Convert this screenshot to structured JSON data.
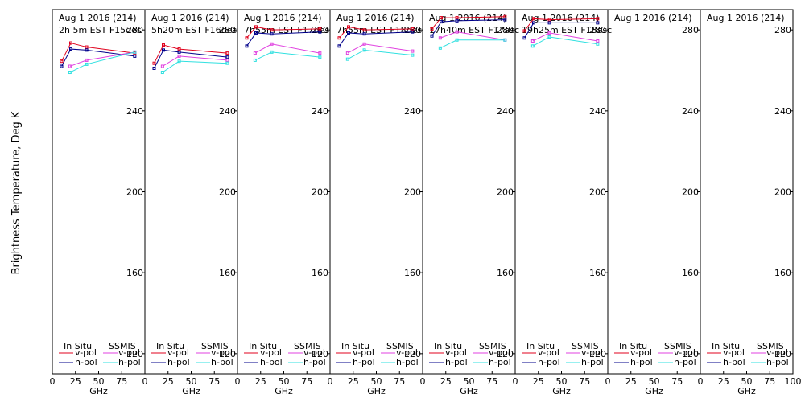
{
  "ylabel": "Brightness Temperature, Deg K",
  "xlabel": "GHz",
  "x_ticks": [
    0,
    25,
    50,
    75,
    100
  ],
  "y_ticks": [
    120,
    160,
    200,
    240,
    280
  ],
  "legend": {
    "in_situ": "In Situ",
    "ssmis": "SSMIS",
    "vpol": "v-pol",
    "hpol": "h-pol"
  },
  "colors": {
    "insitu_v": "#e0001c",
    "insitu_h": "#00008b",
    "ssmis_v": "#e040e0",
    "ssmis_h": "#30e0e0"
  },
  "chart_data": {
    "type": "line",
    "xlim": [
      0,
      100
    ],
    "ylim": [
      110,
      290
    ],
    "panels": [
      {
        "date": "Aug 1 2016 (214)",
        "time": "2h 5m  EST F15des",
        "series": [
          {
            "key": "insitu_v",
            "x": [
              10,
              20,
              37,
              89
            ],
            "y": [
              264.5,
              273.5,
              271.5,
              268.5
            ]
          },
          {
            "key": "insitu_h",
            "x": [
              10,
              20,
              37,
              89
            ],
            "y": [
              262,
              270.5,
              270,
              267
            ]
          },
          {
            "key": "ssmis_v",
            "x": [
              19,
              37,
              89
            ],
            "y": [
              262,
              265,
              269
            ]
          },
          {
            "key": "ssmis_h",
            "x": [
              19,
              37,
              89
            ],
            "y": [
              259,
              263,
              269
            ]
          }
        ]
      },
      {
        "date": "Aug 1 2016 (214)",
        "time": "5h20m  EST F16des",
        "series": [
          {
            "key": "insitu_v",
            "x": [
              10,
              20,
              37,
              89
            ],
            "y": [
              263.5,
              272.5,
              270.5,
              268.5
            ]
          },
          {
            "key": "insitu_h",
            "x": [
              10,
              20,
              37,
              89
            ],
            "y": [
              261,
              270,
              269,
              266.5
            ]
          },
          {
            "key": "ssmis_v",
            "x": [
              19,
              37,
              89
            ],
            "y": [
              262,
              267,
              265
            ]
          },
          {
            "key": "ssmis_h",
            "x": [
              19,
              37,
              89
            ],
            "y": [
              259,
              264.5,
              263.5
            ]
          }
        ]
      },
      {
        "date": "Aug 1 2016 (214)",
        "time": "7h55m  EST F17des",
        "series": [
          {
            "key": "insitu_v",
            "x": [
              10,
              20,
              37,
              89
            ],
            "y": [
              276,
              281.5,
              280,
              280.5
            ]
          },
          {
            "key": "insitu_h",
            "x": [
              10,
              20,
              37,
              89
            ],
            "y": [
              272,
              278.5,
              278,
              279
            ]
          },
          {
            "key": "ssmis_v",
            "x": [
              19,
              37,
              89
            ],
            "y": [
              268.5,
              273,
              268.5
            ]
          },
          {
            "key": "ssmis_h",
            "x": [
              19,
              37,
              89
            ],
            "y": [
              265,
              269,
              266.5
            ]
          }
        ]
      },
      {
        "date": "Aug 1 2016 (214)",
        "time": "7h55m  EST F18des",
        "series": [
          {
            "key": "insitu_v",
            "x": [
              10,
              20,
              37,
              89
            ],
            "y": [
              276,
              281.5,
              280,
              280.5
            ]
          },
          {
            "key": "insitu_h",
            "x": [
              10,
              20,
              37,
              89
            ],
            "y": [
              272,
              278.5,
              278,
              279
            ]
          },
          {
            "key": "ssmis_v",
            "x": [
              19,
              37,
              89
            ],
            "y": [
              268.5,
              273,
              269.5
            ]
          },
          {
            "key": "ssmis_h",
            "x": [
              19,
              37,
              89
            ],
            "y": [
              265.5,
              270,
              267.5
            ]
          }
        ]
      },
      {
        "date": "Aug 1 2016 (214)",
        "time": "17h40m  EST F17asc",
        "series": [
          {
            "key": "insitu_v",
            "x": [
              10,
              20,
              37,
              89
            ],
            "y": [
              280.5,
              286,
              286,
              286.5
            ]
          },
          {
            "key": "insitu_h",
            "x": [
              10,
              20,
              37,
              89
            ],
            "y": [
              277,
              284,
              284.5,
              285
            ]
          },
          {
            "key": "ssmis_v",
            "x": [
              19,
              37,
              89
            ],
            "y": [
              276,
              279,
              275
            ]
          },
          {
            "key": "ssmis_h",
            "x": [
              19,
              37,
              89
            ],
            "y": [
              271,
              275,
              275
            ]
          }
        ]
      },
      {
        "date": "Aug 1 2016 (214)",
        "time": "19h25m  EST F18asc",
        "series": [
          {
            "key": "insitu_v",
            "x": [
              10,
              20,
              37,
              89
            ],
            "y": [
              279.5,
              285.5,
              285,
              285.5
            ]
          },
          {
            "key": "insitu_h",
            "x": [
              10,
              20,
              37,
              89
            ],
            "y": [
              276,
              283.5,
              283.5,
              283.5
            ]
          },
          {
            "key": "ssmis_v",
            "x": [
              19,
              37,
              89
            ],
            "y": [
              274.5,
              278.5,
              274.5
            ]
          },
          {
            "key": "ssmis_h",
            "x": [
              19,
              37,
              89
            ],
            "y": [
              272,
              276.5,
              273
            ]
          }
        ]
      },
      {
        "date": "Aug 1 2016 (214)",
        "time": "",
        "series": []
      },
      {
        "date": "Aug 1 2016 (214)",
        "time": "",
        "series": []
      }
    ]
  }
}
